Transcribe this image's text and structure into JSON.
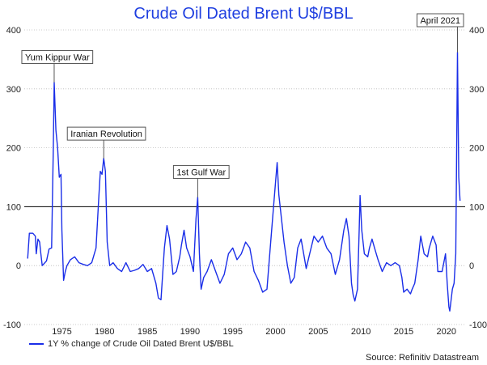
{
  "colors": {
    "series": "#1a2ee8",
    "title": "#1f3fe0",
    "grid": "#bbbbbb",
    "refline": "#000000"
  },
  "chart_data": {
    "type": "line",
    "title": "Crude Oil Dated Brent U$/BBL",
    "xlabel": "",
    "ylabel": "",
    "xlim": [
      1970.6,
      2022.2
    ],
    "ylim": [
      -100,
      400
    ],
    "x_ticks": [
      "1975",
      "1980",
      "1985",
      "1990",
      "1995",
      "2000",
      "2005",
      "2010",
      "2015",
      "2020"
    ],
    "y_ticks": [
      "400",
      "300",
      "200",
      "100",
      "0",
      "-100"
    ],
    "grid": "horizontal dotted",
    "reference_line": 100,
    "legend": "bottom-left",
    "series": [
      {
        "name": "1Y % change of Crude Oil Dated Brent U$/BBL",
        "points": [
          [
            1971.0,
            12
          ],
          [
            1971.2,
            55
          ],
          [
            1971.6,
            55
          ],
          [
            1971.9,
            50
          ],
          [
            1972.0,
            20
          ],
          [
            1972.2,
            45
          ],
          [
            1972.4,
            40
          ],
          [
            1972.5,
            25
          ],
          [
            1972.7,
            0
          ],
          [
            1973.2,
            8
          ],
          [
            1973.5,
            28
          ],
          [
            1973.8,
            30
          ],
          [
            1974.0,
            200
          ],
          [
            1974.1,
            311
          ],
          [
            1974.3,
            230
          ],
          [
            1974.5,
            200
          ],
          [
            1974.7,
            150
          ],
          [
            1974.9,
            155
          ],
          [
            1975.0,
            60
          ],
          [
            1975.2,
            -25
          ],
          [
            1975.4,
            -10
          ],
          [
            1975.6,
            0
          ],
          [
            1976.0,
            10
          ],
          [
            1976.5,
            15
          ],
          [
            1977.0,
            5
          ],
          [
            1977.5,
            2
          ],
          [
            1978.0,
            0
          ],
          [
            1978.5,
            5
          ],
          [
            1979.0,
            30
          ],
          [
            1979.3,
            110
          ],
          [
            1979.5,
            160
          ],
          [
            1979.7,
            155
          ],
          [
            1979.9,
            182
          ],
          [
            1980.1,
            160
          ],
          [
            1980.3,
            40
          ],
          [
            1980.6,
            0
          ],
          [
            1981.0,
            5
          ],
          [
            1981.5,
            -5
          ],
          [
            1982.0,
            -10
          ],
          [
            1982.5,
            5
          ],
          [
            1983.0,
            -10
          ],
          [
            1983.5,
            -8
          ],
          [
            1984.0,
            -5
          ],
          [
            1984.5,
            2
          ],
          [
            1985.0,
            -10
          ],
          [
            1985.5,
            -5
          ],
          [
            1986.0,
            -30
          ],
          [
            1986.3,
            -55
          ],
          [
            1986.6,
            -58
          ],
          [
            1987.0,
            30
          ],
          [
            1987.3,
            68
          ],
          [
            1987.6,
            45
          ],
          [
            1988.0,
            -15
          ],
          [
            1988.4,
            -10
          ],
          [
            1988.8,
            15
          ],
          [
            1989.0,
            35
          ],
          [
            1989.3,
            60
          ],
          [
            1989.6,
            30
          ],
          [
            1990.0,
            15
          ],
          [
            1990.4,
            -10
          ],
          [
            1990.7,
            80
          ],
          [
            1990.9,
            116
          ],
          [
            1991.1,
            20
          ],
          [
            1991.3,
            -40
          ],
          [
            1991.6,
            -20
          ],
          [
            1992.0,
            -10
          ],
          [
            1992.5,
            10
          ],
          [
            1993.0,
            -10
          ],
          [
            1993.5,
            -30
          ],
          [
            1994.0,
            -15
          ],
          [
            1994.5,
            20
          ],
          [
            1995.0,
            30
          ],
          [
            1995.5,
            10
          ],
          [
            1996.0,
            20
          ],
          [
            1996.5,
            40
          ],
          [
            1997.0,
            30
          ],
          [
            1997.5,
            -10
          ],
          [
            1998.0,
            -25
          ],
          [
            1998.5,
            -45
          ],
          [
            1999.0,
            -40
          ],
          [
            1999.5,
            50
          ],
          [
            2000.0,
            140
          ],
          [
            2000.2,
            175
          ],
          [
            2000.4,
            120
          ],
          [
            2000.7,
            80
          ],
          [
            2001.0,
            40
          ],
          [
            2001.4,
            0
          ],
          [
            2001.8,
            -30
          ],
          [
            2002.2,
            -20
          ],
          [
            2002.6,
            30
          ],
          [
            2003.0,
            45
          ],
          [
            2003.3,
            20
          ],
          [
            2003.6,
            -5
          ],
          [
            2004.0,
            20
          ],
          [
            2004.5,
            50
          ],
          [
            2005.0,
            40
          ],
          [
            2005.5,
            50
          ],
          [
            2006.0,
            30
          ],
          [
            2006.5,
            20
          ],
          [
            2007.0,
            -15
          ],
          [
            2007.5,
            10
          ],
          [
            2008.0,
            60
          ],
          [
            2008.3,
            80
          ],
          [
            2008.6,
            50
          ],
          [
            2008.9,
            -30
          ],
          [
            2009.1,
            -50
          ],
          [
            2009.3,
            -60
          ],
          [
            2009.6,
            -40
          ],
          [
            2009.8,
            60
          ],
          [
            2009.9,
            119
          ],
          [
            2010.1,
            60
          ],
          [
            2010.4,
            20
          ],
          [
            2010.8,
            15
          ],
          [
            2011.0,
            30
          ],
          [
            2011.3,
            45
          ],
          [
            2011.6,
            30
          ],
          [
            2012.0,
            10
          ],
          [
            2012.5,
            -10
          ],
          [
            2013.0,
            5
          ],
          [
            2013.5,
            0
          ],
          [
            2014.0,
            5
          ],
          [
            2014.5,
            0
          ],
          [
            2014.8,
            -20
          ],
          [
            2015.0,
            -45
          ],
          [
            2015.4,
            -40
          ],
          [
            2015.8,
            -48
          ],
          [
            2016.0,
            -40
          ],
          [
            2016.3,
            -30
          ],
          [
            2016.7,
            10
          ],
          [
            2017.0,
            50
          ],
          [
            2017.4,
            20
          ],
          [
            2017.8,
            15
          ],
          [
            2018.0,
            30
          ],
          [
            2018.4,
            50
          ],
          [
            2018.8,
            35
          ],
          [
            2019.0,
            -10
          ],
          [
            2019.5,
            -10
          ],
          [
            2019.9,
            20
          ],
          [
            2020.1,
            -30
          ],
          [
            2020.3,
            -70
          ],
          [
            2020.4,
            -77
          ],
          [
            2020.7,
            -40
          ],
          [
            2020.9,
            -30
          ],
          [
            2021.1,
            20
          ],
          [
            2021.2,
            180
          ],
          [
            2021.3,
            362
          ],
          [
            2021.45,
            150
          ],
          [
            2021.6,
            110
          ]
        ]
      }
    ],
    "annotations": [
      {
        "label": "Yum Kippur War",
        "x": 1974.1,
        "y": 311
      },
      {
        "label": "Iranian Revolution",
        "x": 1979.9,
        "y": 182
      },
      {
        "label": "1st Gulf War",
        "x": 1990.9,
        "y": 116
      },
      {
        "label": "April 2021",
        "x": 2021.3,
        "y": 362
      }
    ]
  },
  "source": "Source: Refinitiv Datastream"
}
